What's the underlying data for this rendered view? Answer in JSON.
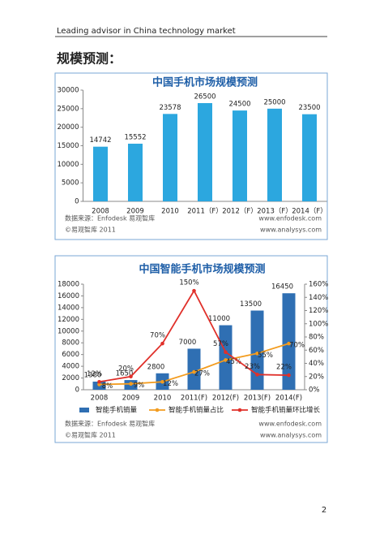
{
  "header": "Leading advisor in China technology market",
  "heading": "规模预测：",
  "page_number": "2",
  "chart_data": [
    {
      "type": "bar",
      "title": "中国手机市场规模预测",
      "categories": [
        "2008",
        "2009",
        "2010",
        "2011（F）",
        "2012（F）",
        "2013（F）",
        "2014（F）"
      ],
      "values": [
        14742,
        15552,
        23578,
        26500,
        24500,
        25000,
        23500
      ],
      "color": "#2ca7df",
      "ylim": [
        0,
        30000
      ],
      "yticks": [
        0,
        5000,
        10000,
        15000,
        20000,
        25000,
        30000
      ],
      "annotations": [
        "数据来源：Enfodesk 易观智库",
        "©易观智库 2011",
        "www.enfodesk.com",
        "www.analysys.com"
      ]
    },
    {
      "type": "combo",
      "title": "中国智能手机市场规模预测",
      "categories": [
        "2008",
        "2009",
        "2010",
        "2011(F)",
        "2012(F)",
        "2013(F)",
        "2014(F)"
      ],
      "series": [
        {
          "name": "智能手机销量",
          "type": "bar",
          "color": "#2f6fb3",
          "values": [
            1380,
            1650,
            2800,
            7000,
            11000,
            13500,
            16450
          ]
        },
        {
          "name": "智能手机销量占比",
          "type": "line",
          "axis": "y2",
          "color": "#f39c1f",
          "values": [
            8,
            9,
            12,
            27,
            45,
            55,
            70
          ],
          "value_labels": [
            "8%",
            "9%",
            "12%",
            "27%",
            "45%",
            "55%",
            "70%"
          ]
        },
        {
          "name": "智能手机销量环比增长",
          "type": "line",
          "axis": "y2",
          "color": "#e0302a",
          "values": [
            12,
            20,
            70,
            150,
            57,
            23,
            22
          ],
          "value_labels": [
            "12%",
            "20%",
            "70%",
            "150%",
            "57%",
            "23%",
            "22%"
          ]
        }
      ],
      "ylim": [
        0,
        18000
      ],
      "yticks": [
        0,
        2000,
        4000,
        6000,
        8000,
        10000,
        12000,
        14000,
        16000,
        18000
      ],
      "y2lim": [
        0,
        160
      ],
      "y2ticks": [
        {
          "value": 0,
          "label": "0%"
        },
        {
          "value": 20,
          "label": "20%"
        },
        {
          "value": 40,
          "label": "40%"
        },
        {
          "value": 60,
          "label": "60%"
        },
        {
          "value": 80,
          "label": "80%"
        },
        {
          "value": 100,
          "label": "100%"
        },
        {
          "value": 120,
          "label": "120%"
        },
        {
          "value": 140,
          "label": "140%"
        },
        {
          "value": 160,
          "label": "160%"
        }
      ],
      "legend": "bottom",
      "annotations": [
        "数据来源：Enfodesk 易观智库",
        "©易观智库 2011",
        "www.enfodesk.com",
        "www.analysys.com"
      ]
    }
  ]
}
